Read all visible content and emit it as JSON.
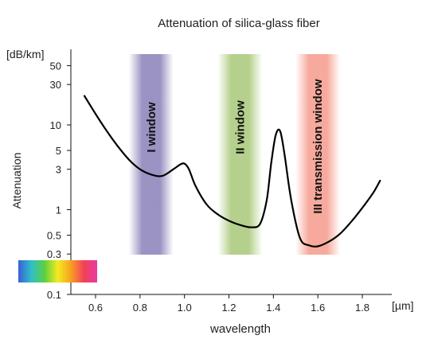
{
  "chart_data": {
    "type": "line",
    "title": "Attenuation of silica-glass fiber",
    "xlabel": "wavelength",
    "xunit": "[µm]",
    "ylabel": "Attenuation",
    "yunit": "[dB/km]",
    "xlim": [
      0.5,
      1.9
    ],
    "ylim": [
      0.1,
      100
    ],
    "yscale": "log",
    "grid": false,
    "x_ticks": [
      0.6,
      0.8,
      1.0,
      1.2,
      1.4,
      1.6,
      1.8
    ],
    "x_tick_labels": [
      "0.6",
      "0.8",
      "1.0",
      "1.2",
      "1.4",
      "1.6",
      "1.8"
    ],
    "y_ticks": [
      0.1,
      0.3,
      0.5,
      1,
      3,
      5,
      10,
      30,
      50
    ],
    "y_tick_labels": [
      "0.1",
      "0.3",
      "0.5",
      "1",
      "3",
      "5",
      "10",
      "30",
      "50"
    ],
    "series": [
      {
        "color": "#000000",
        "x": [
          0.55,
          0.6,
          0.65,
          0.7,
          0.75,
          0.8,
          0.85,
          0.9,
          0.95,
          0.98,
          1.0,
          1.02,
          1.05,
          1.1,
          1.15,
          1.2,
          1.25,
          1.3,
          1.34,
          1.37,
          1.39,
          1.41,
          1.43,
          1.45,
          1.48,
          1.52,
          1.56,
          1.6,
          1.65,
          1.7,
          1.75,
          1.8,
          1.85,
          1.88
        ],
        "y": [
          22,
          13.5,
          8.5,
          5.6,
          3.9,
          3.0,
          2.6,
          2.5,
          3.0,
          3.4,
          3.5,
          3.0,
          1.9,
          1.15,
          0.88,
          0.74,
          0.66,
          0.62,
          0.68,
          1.3,
          3.5,
          7.5,
          8.5,
          4.5,
          1.3,
          0.46,
          0.38,
          0.37,
          0.42,
          0.52,
          0.72,
          1.05,
          1.6,
          2.2
        ]
      }
    ],
    "bands": [
      {
        "label": "I window",
        "x_range": [
          0.75,
          0.95
        ],
        "color": "#8880b8"
      },
      {
        "label": "II window",
        "x_range": [
          1.15,
          1.35
        ],
        "color": "#a8c878"
      },
      {
        "label": "III transmission window",
        "x_range": [
          1.5,
          1.7
        ],
        "color": "#f59a8a"
      }
    ],
    "spectrum_strip": {
      "colors": [
        "#3a5fd8",
        "#2fc0c8",
        "#5cd040",
        "#f5ea20",
        "#f7a020",
        "#f2405a",
        "#e83ca0"
      ]
    }
  }
}
